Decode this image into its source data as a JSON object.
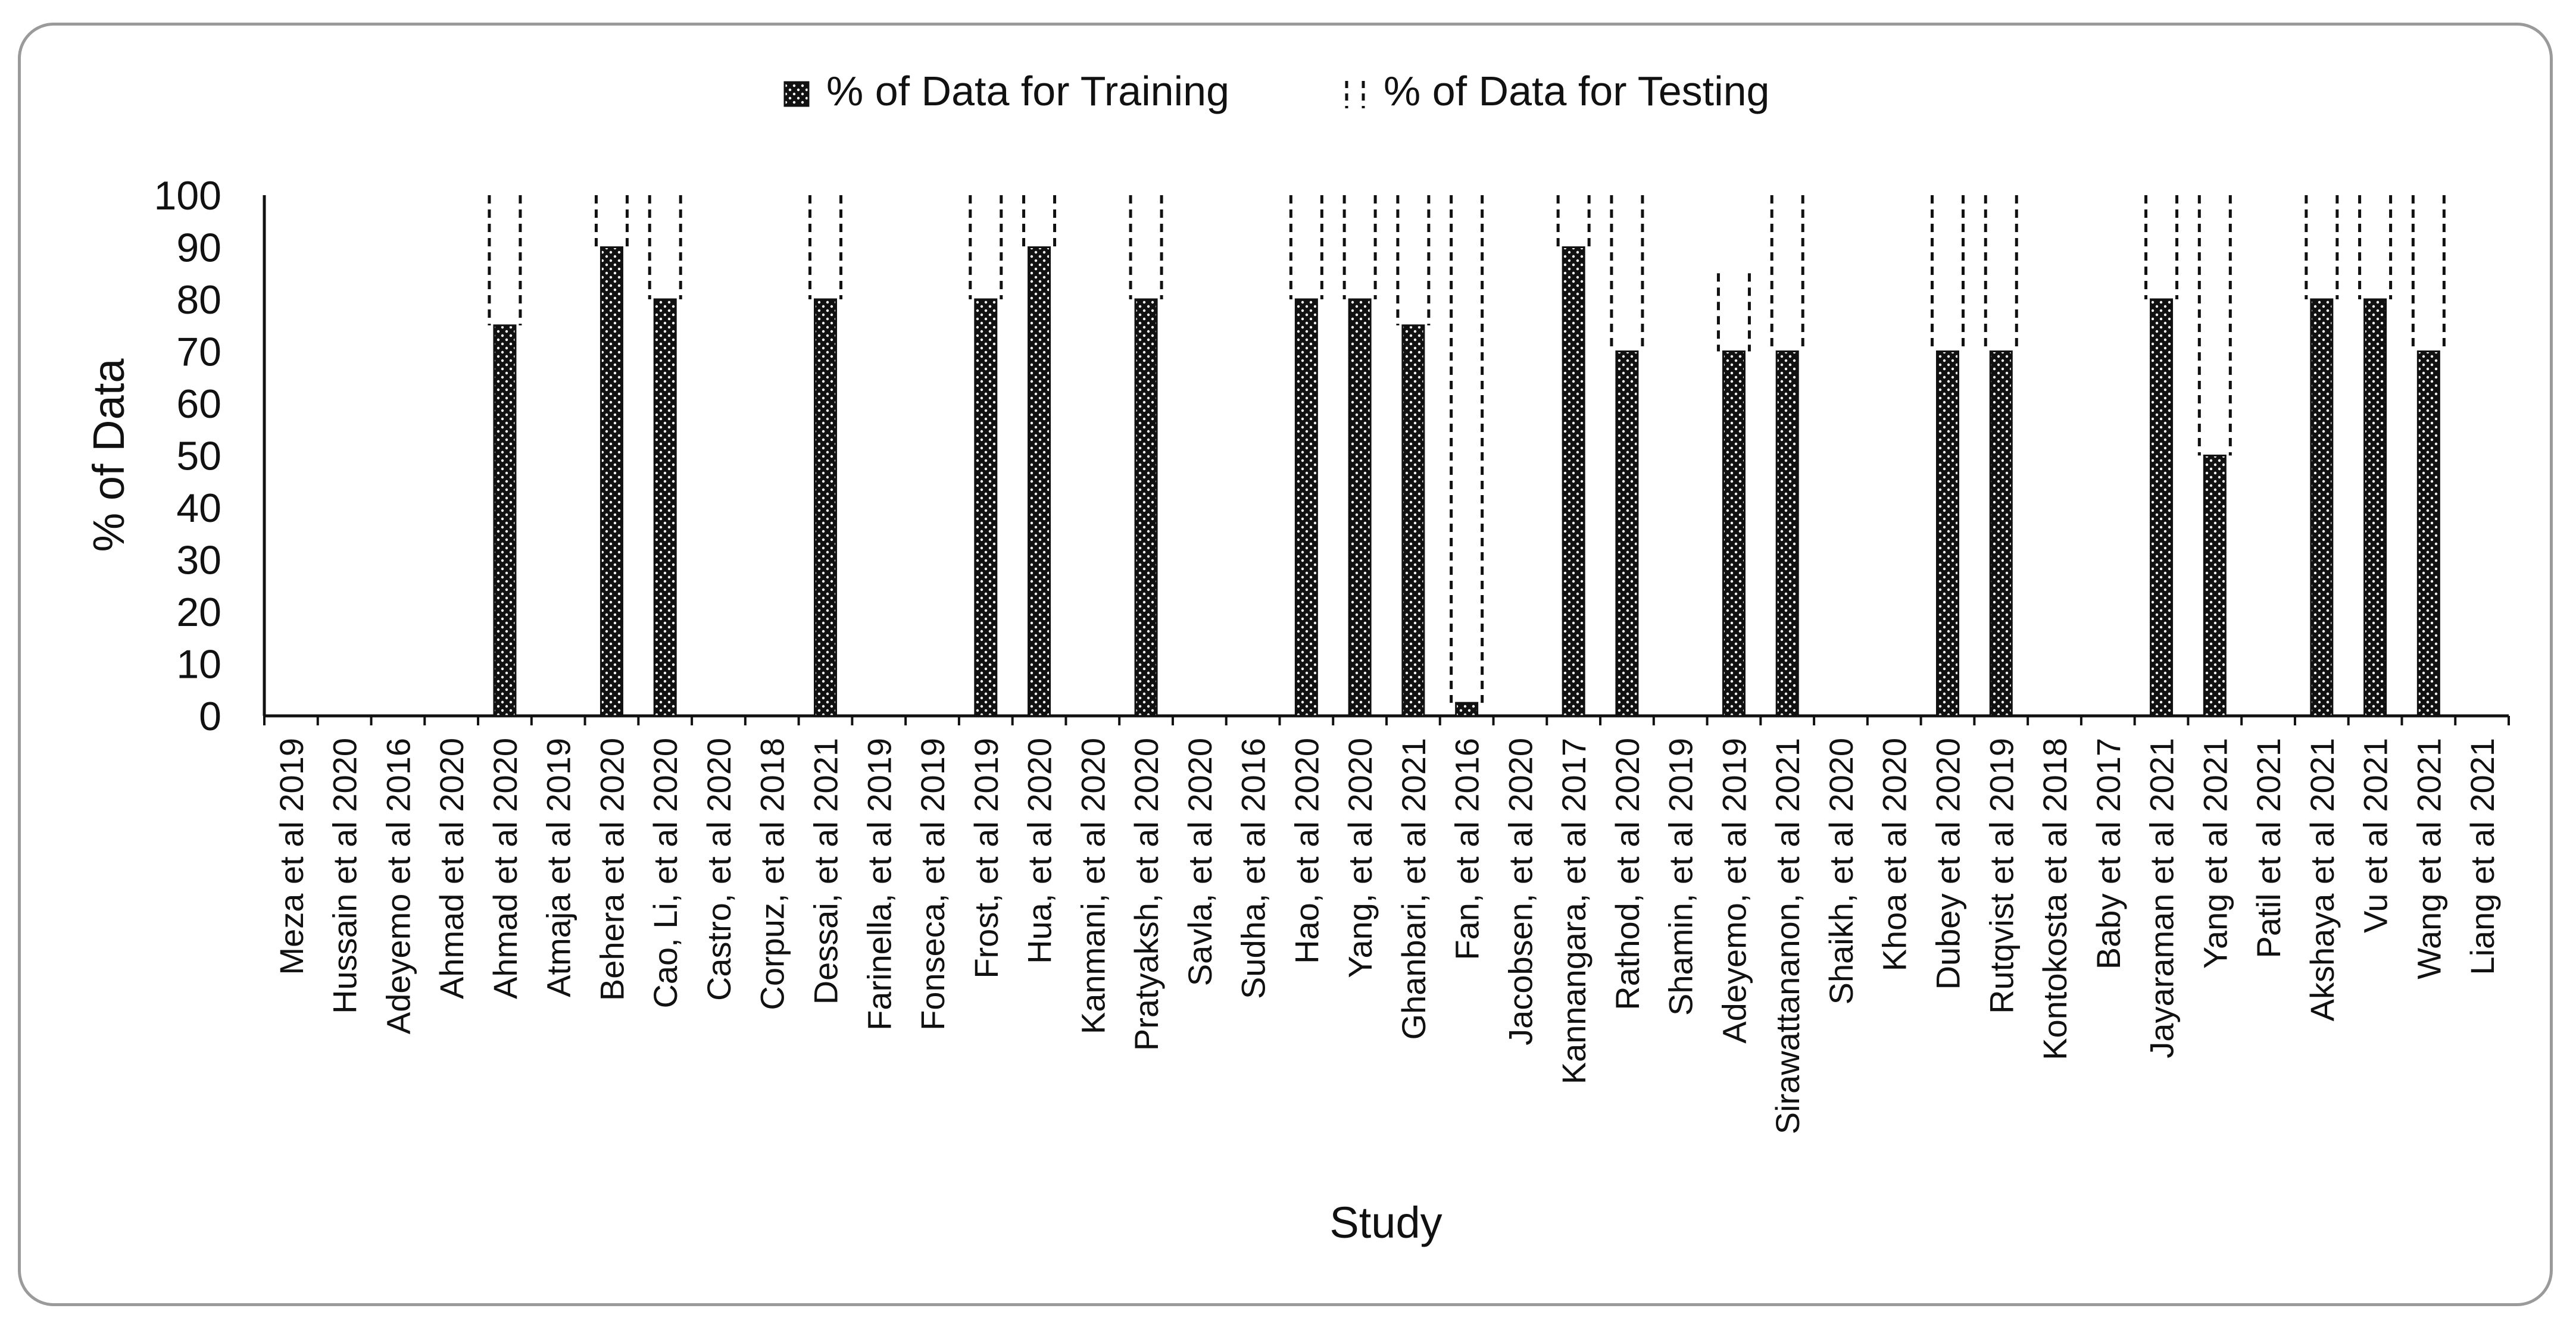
{
  "chart_data": {
    "type": "bar",
    "title": "",
    "xlabel": "Study",
    "ylabel": "% of Data",
    "ylim": [
      0,
      100
    ],
    "yticks": [
      0,
      10,
      20,
      30,
      40,
      50,
      60,
      70,
      80,
      90,
      100
    ],
    "legend_position": "top-center",
    "categories": [
      "Meza et al  2019",
      "Hussain et al 2020",
      "Adeyemo et al 2016",
      "Ahmad et al 2020",
      "Ahmad et al 2020",
      "Atmaja et al 2019",
      "Behera et al 2020",
      "Cao, Li, et al 2020",
      "Castro, et al 2020",
      "Corpuz, et al 2018",
      "Dessai, et al 2021",
      "Farinella, et al 2019",
      "Fonseca, et al 2019",
      "Frost, et al 2019",
      "Hua, et al 2020",
      "Kanmani, et al 2020",
      "Pratyaksh, et al 2020",
      "Savla, et al 2020",
      "Sudha, et al 2016",
      "Hao, et al 2020",
      "Yang, et al 2020",
      "Ghanbari, et al 2021",
      "Fan, et al 2016",
      "Jacobsen, et al 2020",
      "Kannangara, et al 2017",
      "Rathod, et al 2020",
      "Shamin, et al 2019",
      "Adeyemo, et al 2019",
      "Sirawattananon, et al 2021",
      "Shaikh, et al 2020",
      "Khoa et al 2020",
      "Dubey et al 2020",
      "Rutqvist et al 2019",
      "Kontokosta et al 2018",
      "Baby et al 2017",
      "Jayaraman et al 2021",
      "Yang et al 2021",
      "Patil et al 2021",
      "Akshaya et al 2021",
      "Vu et al 2021",
      "Wang et al 2021",
      "Liang et al 2021"
    ],
    "series": [
      {
        "name": "% of Data for Training",
        "values": [
          0,
          0,
          0,
          0,
          75,
          0,
          90,
          80,
          0,
          0,
          80,
          0,
          0,
          80,
          90,
          0,
          80,
          0,
          0,
          80,
          80,
          75,
          2.5,
          0,
          90,
          70,
          0,
          70,
          70,
          0,
          0,
          70,
          70,
          0,
          0,
          80,
          50,
          0,
          80,
          80,
          70,
          0
        ]
      },
      {
        "name": "% of Data for Testing",
        "values": [
          0,
          0,
          0,
          0,
          25,
          0,
          10,
          20,
          0,
          0,
          20,
          0,
          0,
          20,
          10,
          0,
          20,
          0,
          0,
          20,
          20,
          25,
          97.5,
          0,
          10,
          30,
          0,
          15,
          30,
          0,
          0,
          30,
          30,
          0,
          0,
          20,
          50,
          0,
          20,
          20,
          30,
          0
        ]
      }
    ]
  }
}
